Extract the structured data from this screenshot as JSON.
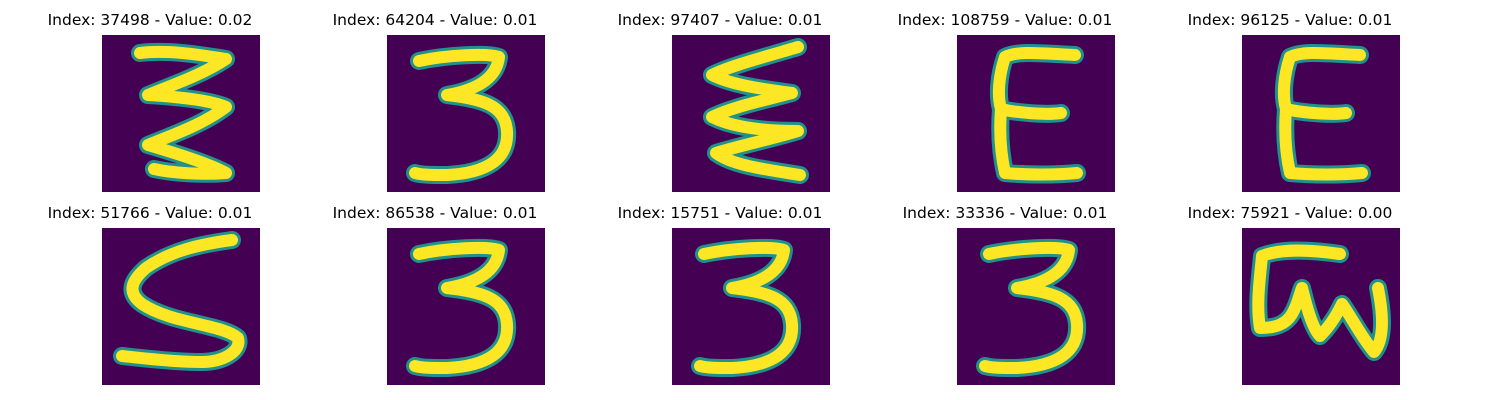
{
  "colors": {
    "background": "#440154",
    "stroke": "#fde725",
    "edge": "#21918c"
  },
  "panels": [
    {
      "title": "Index: 37498 - Value: 0.02",
      "glyph": "wavy-three"
    },
    {
      "title": "Index: 64204 - Value: 0.01",
      "glyph": "three"
    },
    {
      "title": "Index: 97407 - Value: 0.01",
      "glyph": "wavy-e"
    },
    {
      "title": "Index: 108759 - Value: 0.01",
      "glyph": "e"
    },
    {
      "title": "Index: 96125 - Value: 0.01",
      "glyph": "e"
    },
    {
      "title": "Index: 51766 - Value: 0.01",
      "glyph": "five"
    },
    {
      "title": "Index: 86538 - Value: 0.01",
      "glyph": "three"
    },
    {
      "title": "Index: 15751 - Value: 0.01",
      "glyph": "three"
    },
    {
      "title": "Index: 33336 - Value: 0.01",
      "glyph": "three"
    },
    {
      "title": "Index: 75921 - Value: 0.00",
      "glyph": "loop-w"
    }
  ]
}
